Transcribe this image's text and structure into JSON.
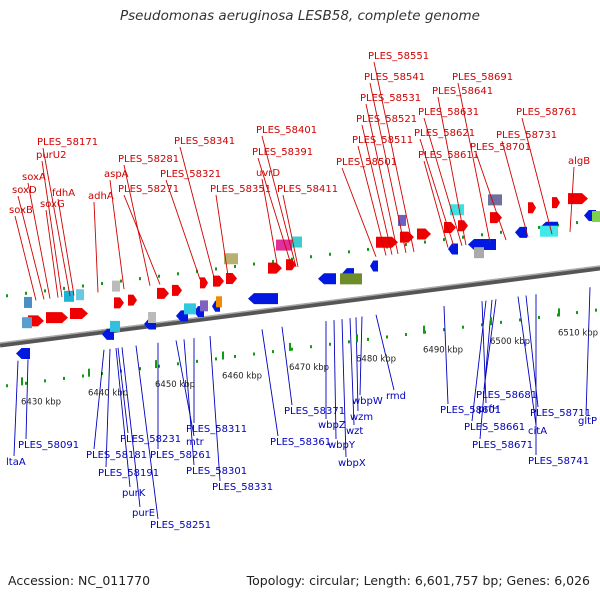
{
  "title": "Pseudomonas aeruginosa LESB58, complete genome",
  "footer": {
    "accession": "Accession: NC_011770",
    "summary": "Topology: circular; Length: 6,601,757 bp; Genes: 6,026"
  },
  "scale_ticks": [
    "6430 kbp",
    "6440 kbp",
    "6450 kbp",
    "6460 kbp",
    "6470 kbp",
    "6480 kbp",
    "6490 kbp",
    "6500 kbp",
    "6510 kbp"
  ],
  "top_labels": [
    "soxB",
    "soxD",
    "soxA",
    "purU2",
    "PLES_58171",
    "soxG",
    "fdhA",
    "adhA",
    "aspA",
    "PLES_58271",
    "PLES_58281",
    "PLES_58321",
    "PLES_58341",
    "PLES_58351",
    "uvrD",
    "PLES_58391",
    "PLES_58401",
    "PLES_58411",
    "PLES_58501",
    "PLES_58511",
    "PLES_58521",
    "PLES_58531",
    "PLES_58541",
    "PLES_58551",
    "PLES_58611",
    "PLES_58621",
    "PLES_58631",
    "PLES_58641",
    "PLES_58691",
    "PLES_58701",
    "PLES_58731",
    "PLES_58761",
    "algB"
  ],
  "bottom_labels": [
    "ltaA",
    "PLES_58091",
    "PLES_58181",
    "PLES_58191",
    "purK",
    "purE",
    "PLES_58231",
    "PLES_58251",
    "PLES_58261",
    "mtr",
    "PLES_58301",
    "PLES_58311",
    "PLES_58331",
    "PLES_58361",
    "PLES_58371",
    "wbpZ",
    "wbpY",
    "wbpX",
    "wzt",
    "wzm",
    "wbpW",
    "rmd",
    "PLES_58601",
    "prfH",
    "PLES_58661",
    "PLES_58671",
    "PLES_58681",
    "citA",
    "PLES_58711",
    "PLES_58741",
    "gltP"
  ],
  "colors": {
    "forward": "#ee0000",
    "reverse": "#0018e0",
    "label_forward": "#d00000",
    "label_reverse": "#0000c0",
    "backbone": "#777777",
    "tick": "#119911"
  }
}
